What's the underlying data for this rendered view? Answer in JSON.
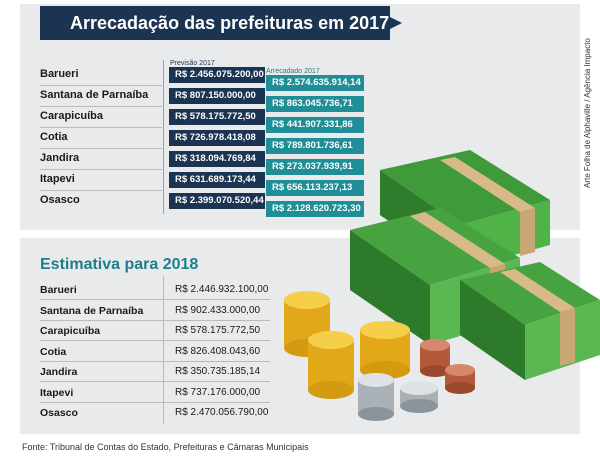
{
  "title": "Arrecadação das prefeituras em 2017",
  "labels": {
    "previsao": "Previsão 2017",
    "arrecadado": "Arrecadado 2017"
  },
  "credit": "Arte Folha de Alphaville / Agência Impacto",
  "source": "Fonte: Tribunal de Contas do Estado, Prefeituras e Câmaras Municipais",
  "estimate_title": "Estimativa para 2018",
  "rows_2017": [
    {
      "city": "Barueri",
      "previsao": "R$ 2.456.075.200,00",
      "arrecadado": "R$ 2.574.635.914,14"
    },
    {
      "city": "Santana de Parnaíba",
      "previsao": "R$ 807.150.000,00",
      "arrecadado": "R$ 863.045.736,71"
    },
    {
      "city": "Carapicuíba",
      "previsao": "R$ 578.175.772,50",
      "arrecadado": "R$ 441.907.331,86"
    },
    {
      "city": "Cotia",
      "previsao": "R$ 726.978.418,08",
      "arrecadado": "R$ 789.801.736,61"
    },
    {
      "city": "Jandira",
      "previsao": "R$ 318.094.769,84",
      "arrecadado": "R$ 273.037.939,91"
    },
    {
      "city": "Itapevi",
      "previsao": "R$ 631.689.173,44",
      "arrecadado": "R$ 656.113.237,13"
    },
    {
      "city": "Osasco",
      "previsao": "R$ 2.399.070.520,44",
      "arrecadado": "R$ 2.128.620.723,30"
    }
  ],
  "rows_2018": [
    {
      "city": "Barueri",
      "value": "R$ 2.446.932.100,00"
    },
    {
      "city": "Santana de Parnaíba",
      "value": "R$ 902.433.000,00"
    },
    {
      "city": "Carapicuíba",
      "value": "R$ 578.175.772,50"
    },
    {
      "city": "Cotia",
      "value": "R$ 826.408.043,60"
    },
    {
      "city": "Jandira",
      "value": "R$ 350.735.185,14"
    },
    {
      "city": "Itapevi",
      "value": "R$ 737.176.000,00"
    },
    {
      "city": "Osasco",
      "value": "R$ 2.470.056.790,00"
    }
  ],
  "colors": {
    "navy": "#1b3452",
    "teal": "#1f8e97",
    "accent": "#1c7f8a",
    "panel": "#e9eaeb"
  },
  "chart_data": [
    {
      "type": "bar",
      "title": "Arrecadação das prefeituras em 2017",
      "categories": [
        "Barueri",
        "Santana de Parnaíba",
        "Carapicuíba",
        "Cotia",
        "Jandira",
        "Itapevi",
        "Osasco"
      ],
      "series": [
        {
          "name": "Previsão 2017",
          "values": [
            2456075200.0,
            807150000.0,
            578175772.5,
            726978418.08,
            318094769.84,
            631689173.44,
            2399070520.44
          ]
        },
        {
          "name": "Arrecadado 2017",
          "values": [
            2574635914.14,
            863045736.71,
            441907331.86,
            789801736.61,
            273037939.91,
            656113237.13,
            2128620723.3
          ]
        }
      ],
      "xlabel": "",
      "ylabel": ""
    },
    {
      "type": "table",
      "title": "Estimativa para 2018",
      "categories": [
        "Barueri",
        "Santana de Parnaíba",
        "Carapicuíba",
        "Cotia",
        "Jandira",
        "Itapevi",
        "Osasco"
      ],
      "values": [
        2446932100.0,
        902433000.0,
        578175772.5,
        826408043.6,
        350735185.14,
        737176000.0,
        2470056790.0
      ]
    }
  ]
}
